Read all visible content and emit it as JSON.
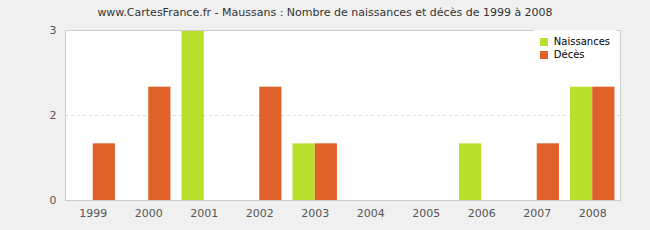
{
  "chart_data": {
    "type": "bar",
    "title": "www.CartesFrance.fr - Maussans : Nombre de naissances et décès de 1999 à 2008",
    "categories": [
      "1999",
      "2000",
      "2001",
      "2002",
      "2003",
      "2004",
      "2005",
      "2006",
      "2007",
      "2008"
    ],
    "series": [
      {
        "name": "Naissances",
        "color": "#b8e02c",
        "values": [
          0,
          0,
          3,
          0,
          1,
          0,
          0,
          1,
          0,
          2
        ]
      },
      {
        "name": "Décès",
        "color": "#e0622a",
        "values": [
          1,
          2,
          0,
          2,
          1,
          0,
          0,
          0,
          1,
          2
        ]
      }
    ],
    "ylim": [
      0,
      3
    ],
    "yticks": [
      0,
      {
        "value": 1.5,
        "label": "2"
      },
      3
    ],
    "grid": true,
    "legend": "top-right"
  }
}
